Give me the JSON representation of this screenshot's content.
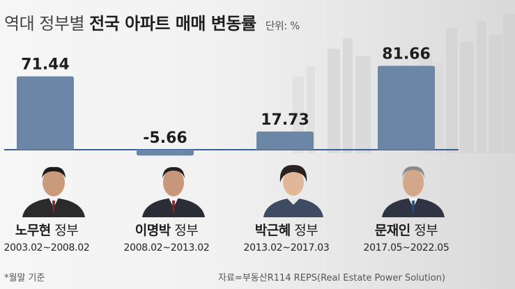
{
  "title": {
    "light": "역대 정부별",
    "bold": "전국 아파트 매매 변동률",
    "unit": "단위: %"
  },
  "chart_data": {
    "type": "bar",
    "title": "역대 정부별 전국 아파트 매매 변동률",
    "ylabel": "",
    "xlabel": "",
    "unit": "%",
    "categories": [
      "노무현 정부",
      "이명박 정부",
      "박근혜 정부",
      "문재인 정부"
    ],
    "values": [
      71.44,
      -5.66,
      17.73,
      81.66
    ],
    "value_labels": [
      "71.44",
      "-5.66",
      "17.73",
      "81.66"
    ],
    "ylim": [
      -10,
      90
    ],
    "grid": false,
    "bar_color": "#6c86a8",
    "baseline_color": "#3a5e96"
  },
  "governments": [
    {
      "name": "노무현",
      "suffix": " 정부",
      "period": "2003.02~2008.02",
      "photo": "portrait-roh"
    },
    {
      "name": "이명박",
      "suffix": " 정부",
      "period": "2008.02~2013.02",
      "photo": "portrait-lee"
    },
    {
      "name": "박근혜",
      "suffix": " 정부",
      "period": "2013.02~2017.03",
      "photo": "portrait-park"
    },
    {
      "name": "문재인",
      "suffix": " 정부",
      "period": "2017.05~2022.05",
      "photo": "portrait-moon"
    }
  ],
  "footnote": "*월말 기준",
  "source": "자료=부동산R114 REPS(Real Estate Power Solution)"
}
